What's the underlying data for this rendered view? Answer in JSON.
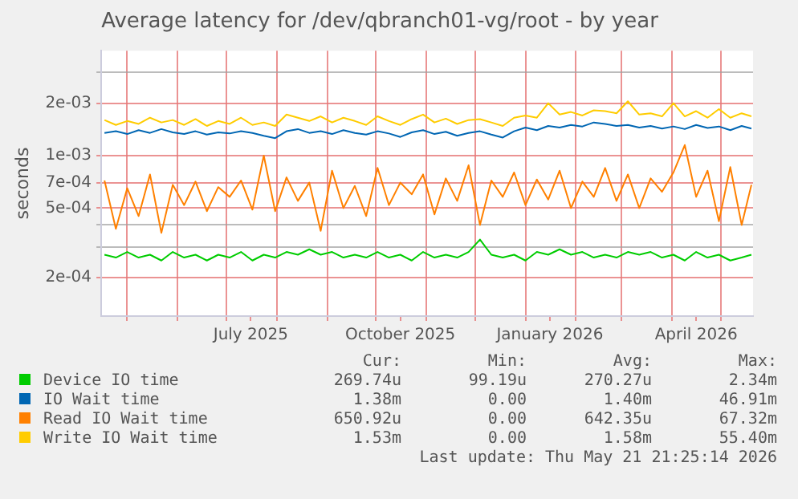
{
  "chart_data": {
    "type": "line",
    "title": "Average latency for /dev/qbranch01-vg/root - by year",
    "ylabel": "seconds",
    "log": "y",
    "grid": true,
    "legend": "bottom",
    "marker": "none",
    "line_style": "solid",
    "xlim": [
      "2025-04-15",
      "2026-05-21"
    ],
    "xticks": [
      {
        "value": "2025-05-01",
        "label": null
      },
      {
        "value": "2025-06-01",
        "label": null
      },
      {
        "value": "2025-07-01",
        "label": null
      },
      {
        "value": "2025-07-16",
        "label": "July 2025"
      },
      {
        "value": "2025-08-01",
        "label": null
      },
      {
        "value": "2025-09-01",
        "label": null
      },
      {
        "value": "2025-10-01",
        "label": null
      },
      {
        "value": "2025-10-16",
        "label": "October 2025"
      },
      {
        "value": "2025-11-01",
        "label": null
      },
      {
        "value": "2025-12-01",
        "label": null
      },
      {
        "value": "2026-01-01",
        "label": null
      },
      {
        "value": "2026-01-16",
        "label": "January 2026"
      },
      {
        "value": "2026-02-01",
        "label": null
      },
      {
        "value": "2026-03-01",
        "label": null
      },
      {
        "value": "2026-04-01",
        "label": null
      },
      {
        "value": "2026-04-16",
        "label": "April 2026"
      },
      {
        "value": "2026-05-01",
        "label": null
      }
    ],
    "ylim": [
      0.00012,
      0.004
    ],
    "yticks": [
      {
        "value": 0.0002,
        "label": "2e-04"
      },
      {
        "value": 0.0003,
        "label": null
      },
      {
        "value": 0.0004,
        "label": null
      },
      {
        "value": 0.0005,
        "label": "5e-04"
      },
      {
        "value": 0.0007,
        "label": "7e-04"
      },
      {
        "value": 0.001,
        "label": "1e-03"
      },
      {
        "value": 0.002,
        "label": "2e-03"
      },
      {
        "value": 0.003,
        "label": null
      }
    ],
    "x": [
      "2025-04-17",
      "2025-04-24",
      "2025-05-01",
      "2025-05-08",
      "2025-05-15",
      "2025-05-22",
      "2025-05-29",
      "2025-06-05",
      "2025-06-12",
      "2025-06-19",
      "2025-06-26",
      "2025-07-03",
      "2025-07-10",
      "2025-07-17",
      "2025-07-24",
      "2025-07-31",
      "2025-08-07",
      "2025-08-14",
      "2025-08-21",
      "2025-08-28",
      "2025-09-04",
      "2025-09-11",
      "2025-09-18",
      "2025-09-25",
      "2025-10-02",
      "2025-10-09",
      "2025-10-16",
      "2025-10-23",
      "2025-10-30",
      "2025-11-06",
      "2025-11-13",
      "2025-11-20",
      "2025-11-27",
      "2025-12-04",
      "2025-12-11",
      "2025-12-18",
      "2025-12-25",
      "2026-01-01",
      "2026-01-08",
      "2026-01-15",
      "2026-01-22",
      "2026-01-29",
      "2026-02-05",
      "2026-02-12",
      "2026-02-19",
      "2026-02-26",
      "2026-03-05",
      "2026-03-12",
      "2026-03-19",
      "2026-03-26",
      "2026-04-02",
      "2026-04-09",
      "2026-04-16",
      "2026-04-23",
      "2026-04-30",
      "2026-05-07",
      "2026-05-14",
      "2026-05-20"
    ],
    "series": [
      {
        "name": "Device IO time",
        "color": "#00cc00",
        "values": [
          0.00027,
          0.00026,
          0.00028,
          0.00026,
          0.00027,
          0.00025,
          0.00028,
          0.00026,
          0.00027,
          0.00025,
          0.00027,
          0.00026,
          0.00028,
          0.00025,
          0.00027,
          0.00026,
          0.00028,
          0.00027,
          0.00029,
          0.00027,
          0.00028,
          0.00026,
          0.00027,
          0.00026,
          0.00028,
          0.00026,
          0.00027,
          0.00025,
          0.00028,
          0.00026,
          0.00027,
          0.00026,
          0.00028,
          0.00033,
          0.00027,
          0.00026,
          0.00027,
          0.00025,
          0.00028,
          0.00027,
          0.00029,
          0.00027,
          0.00028,
          0.00026,
          0.00027,
          0.00026,
          0.00028,
          0.00027,
          0.00028,
          0.00026,
          0.00027,
          0.00025,
          0.00028,
          0.00026,
          0.00027,
          0.00025,
          0.00026,
          0.00027
        ]
      },
      {
        "name": "IO Wait time",
        "color": "#0066b3",
        "values": [
          0.00135,
          0.00138,
          0.00133,
          0.0014,
          0.00135,
          0.00142,
          0.00136,
          0.00133,
          0.00138,
          0.00132,
          0.00136,
          0.00134,
          0.00138,
          0.00135,
          0.0013,
          0.00126,
          0.00138,
          0.00142,
          0.00135,
          0.00138,
          0.00133,
          0.0014,
          0.00135,
          0.00132,
          0.00138,
          0.00134,
          0.00128,
          0.00136,
          0.0014,
          0.00133,
          0.00137,
          0.0013,
          0.00135,
          0.00138,
          0.00132,
          0.00127,
          0.00138,
          0.00145,
          0.0014,
          0.00148,
          0.00145,
          0.0015,
          0.00147,
          0.00155,
          0.00152,
          0.00148,
          0.0015,
          0.00145,
          0.00148,
          0.00143,
          0.00147,
          0.00142,
          0.0015,
          0.00144,
          0.00147,
          0.0014,
          0.00148,
          0.00143
        ]
      },
      {
        "name": "Read IO Wait time",
        "color": "#ff8000",
        "values": [
          0.00072,
          0.00038,
          0.00065,
          0.00045,
          0.00078,
          0.00036,
          0.00068,
          0.00052,
          0.00071,
          0.00048,
          0.00066,
          0.00058,
          0.00072,
          0.00049,
          0.001,
          0.00048,
          0.00075,
          0.00055,
          0.0007,
          0.00037,
          0.00082,
          0.0005,
          0.00067,
          0.00045,
          0.00085,
          0.00052,
          0.0007,
          0.0006,
          0.00078,
          0.00046,
          0.00074,
          0.00055,
          0.00088,
          0.0004,
          0.00072,
          0.00058,
          0.0008,
          0.00052,
          0.00073,
          0.00056,
          0.00082,
          0.0005,
          0.00071,
          0.00058,
          0.00085,
          0.00055,
          0.00078,
          0.0005,
          0.00074,
          0.00062,
          0.0008,
          0.00115,
          0.00058,
          0.00082,
          0.00042,
          0.00086,
          0.0004,
          0.00068
        ]
      },
      {
        "name": "Write IO Wait time",
        "color": "#ffcc00",
        "values": [
          0.0016,
          0.0015,
          0.00158,
          0.00152,
          0.00165,
          0.00155,
          0.0016,
          0.0015,
          0.00162,
          0.00148,
          0.00158,
          0.00152,
          0.00165,
          0.0015,
          0.00155,
          0.00148,
          0.00172,
          0.00165,
          0.00158,
          0.00168,
          0.00155,
          0.00165,
          0.00158,
          0.0015,
          0.00168,
          0.00158,
          0.0015,
          0.00162,
          0.00172,
          0.00155,
          0.00163,
          0.00152,
          0.0016,
          0.00162,
          0.00155,
          0.00148,
          0.00165,
          0.0017,
          0.00165,
          0.002,
          0.00172,
          0.00178,
          0.0017,
          0.00182,
          0.0018,
          0.00175,
          0.00205,
          0.00172,
          0.00175,
          0.00168,
          0.002,
          0.00168,
          0.0018,
          0.00165,
          0.00185,
          0.00165,
          0.00175,
          0.00168
        ]
      }
    ],
    "annotations": [
      "Cur:",
      "Min:",
      "Avg:",
      "Max:",
      "269.74u",
      "99.19u",
      "270.27u",
      "2.34m",
      "1.38m",
      "0.00",
      "1.40m",
      "46.91m",
      "650.92u",
      "0.00",
      "642.35u",
      "67.32m",
      "1.53m",
      "0.00",
      "1.58m",
      "55.40m",
      "Last update: Thu May 21 21:25:14 2026"
    ]
  }
}
